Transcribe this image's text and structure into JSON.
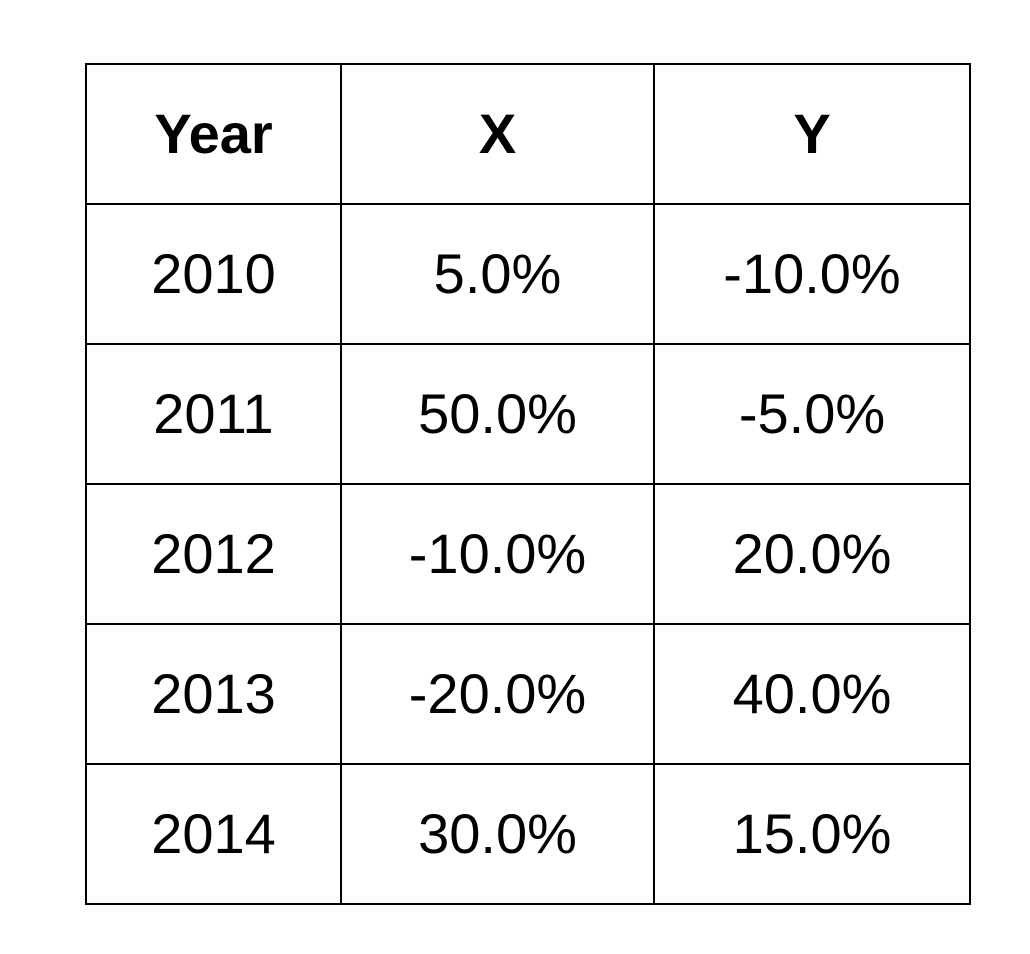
{
  "table": {
    "headers": [
      "Year",
      "X",
      "Y"
    ],
    "rows": [
      [
        "2010",
        "5.0%",
        "-10.0%"
      ],
      [
        "2011",
        "50.0%",
        "-5.0%"
      ],
      [
        "2012",
        "-10.0%",
        "20.0%"
      ],
      [
        "2013",
        "-20.0%",
        "40.0%"
      ],
      [
        "2014",
        "30.0%",
        "15.0%"
      ]
    ]
  }
}
